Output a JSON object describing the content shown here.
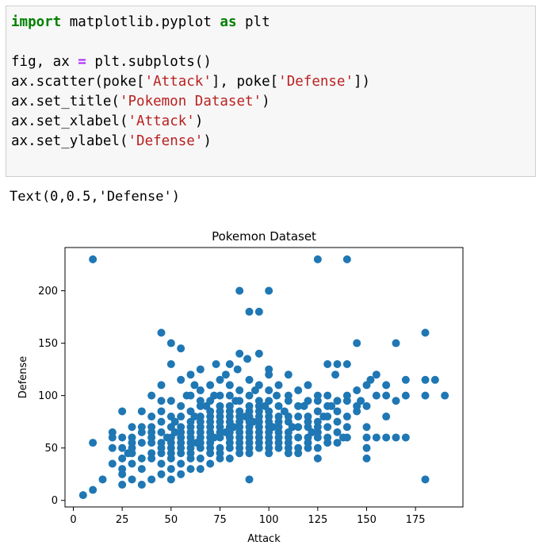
{
  "cell": {
    "lines": [
      [
        {
          "t": "import",
          "c": "kw"
        },
        {
          "t": " matplotlib.pyplot "
        },
        {
          "t": "as",
          "c": "kw"
        },
        {
          "t": " plt"
        }
      ],
      [],
      [
        {
          "t": "fig, ax "
        },
        {
          "t": "=",
          "c": "op"
        },
        {
          "t": " plt.subplots()"
        }
      ],
      [
        {
          "t": "ax.scatter(poke["
        },
        {
          "t": "'Attack'",
          "c": "str"
        },
        {
          "t": "], poke["
        },
        {
          "t": "'Defense'",
          "c": "str"
        },
        {
          "t": "])"
        }
      ],
      [
        {
          "t": "ax.set_title("
        },
        {
          "t": "'Pokemon Dataset'",
          "c": "str"
        },
        {
          "t": ")"
        }
      ],
      [
        {
          "t": "ax.set_xlabel("
        },
        {
          "t": "'Attack'",
          "c": "str"
        },
        {
          "t": ")"
        }
      ],
      [
        {
          "t": "ax.set_ylabel("
        },
        {
          "t": "'Defense'",
          "c": "str"
        },
        {
          "t": ")"
        }
      ]
    ]
  },
  "output": {
    "text": "Text(0,0.5,'Defense')"
  },
  "colors": {
    "marker": "#1f77b4",
    "cell_bg": "#f7f7f7"
  },
  "chart_data": {
    "type": "scatter",
    "title": "Pokemon Dataset",
    "xlabel": "Attack",
    "ylabel": "Defense",
    "xlim": [
      -4.25,
      199.25
    ],
    "ylim": [
      -6.25,
      241.25
    ],
    "xticks": [
      0,
      25,
      50,
      75,
      100,
      125,
      150,
      175
    ],
    "yticks": [
      0,
      50,
      100,
      150,
      200
    ],
    "grid": false,
    "series": [
      {
        "x": [
          5,
          10,
          10,
          15,
          20,
          20,
          20,
          20,
          25,
          25,
          25,
          25,
          25,
          25,
          25,
          28,
          30,
          30,
          30,
          30,
          30,
          30,
          30,
          35,
          35,
          35,
          35,
          35,
          35,
          35,
          40,
          40,
          40,
          40,
          40,
          40,
          40,
          40,
          40,
          45,
          45,
          45,
          45,
          45,
          45,
          45,
          45,
          45,
          45,
          45,
          48,
          50,
          50,
          50,
          50,
          50,
          50,
          50,
          50,
          50,
          50,
          50,
          50,
          52,
          52,
          55,
          55,
          55,
          55,
          55,
          55,
          55,
          55,
          55,
          55,
          55,
          55,
          58,
          60,
          60,
          60,
          60,
          60,
          60,
          60,
          60,
          60,
          60,
          60,
          60,
          62,
          62,
          63,
          65,
          65,
          65,
          65,
          65,
          65,
          65,
          65,
          65,
          65,
          65,
          65,
          65,
          68,
          70,
          70,
          70,
          70,
          70,
          70,
          70,
          70,
          70,
          70,
          70,
          70,
          72,
          72,
          73,
          75,
          75,
          75,
          75,
          75,
          75,
          75,
          75,
          75,
          75,
          75,
          75,
          78,
          78,
          80,
          80,
          80,
          80,
          80,
          80,
          80,
          80,
          80,
          80,
          80,
          80,
          80,
          82,
          83,
          84,
          85,
          85,
          85,
          85,
          85,
          85,
          85,
          85,
          85,
          85,
          85,
          85,
          88,
          89,
          90,
          90,
          90,
          90,
          90,
          90,
          90,
          90,
          90,
          90,
          90,
          90,
          90,
          92,
          93,
          95,
          95,
          95,
          95,
          95,
          95,
          95,
          95,
          95,
          95,
          95,
          95,
          98,
          100,
          100,
          100,
          100,
          100,
          100,
          100,
          100,
          100,
          100,
          100,
          100,
          100,
          102,
          104,
          105,
          105,
          105,
          105,
          105,
          105,
          105,
          105,
          105,
          108,
          110,
          110,
          110,
          110,
          110,
          110,
          110,
          110,
          110,
          110,
          112,
          115,
          115,
          115,
          115,
          115,
          115,
          115,
          118,
          120,
          120,
          120,
          120,
          120,
          120,
          120,
          120,
          122,
          125,
          125,
          125,
          125,
          125,
          125,
          125,
          125,
          125,
          128,
          130,
          130,
          130,
          130,
          130,
          130,
          130,
          132,
          134,
          135,
          135,
          135,
          135,
          135,
          135,
          138,
          140,
          140,
          140,
          140,
          140,
          140,
          145,
          145,
          145,
          145,
          147,
          150,
          150,
          150,
          150,
          150,
          150,
          152,
          155,
          155,
          155,
          160,
          160,
          160,
          160,
          165,
          165,
          165,
          170,
          170,
          170,
          180,
          180,
          180,
          180,
          185,
          190,
          10,
          85,
          100,
          125,
          140,
          90,
          95
        ],
        "y": [
          5,
          55,
          10,
          20,
          35,
          50,
          60,
          65,
          15,
          30,
          40,
          50,
          60,
          85,
          25,
          45,
          20,
          35,
          45,
          50,
          55,
          60,
          70,
          15,
          30,
          40,
          55,
          65,
          70,
          85,
          20,
          40,
          45,
          55,
          60,
          65,
          70,
          80,
          100,
          25,
          35,
          45,
          50,
          55,
          65,
          75,
          85,
          95,
          110,
          160,
          60,
          20,
          30,
          40,
          45,
          50,
          55,
          60,
          70,
          80,
          95,
          130,
          150,
          65,
          75,
          25,
          35,
          45,
          50,
          55,
          60,
          65,
          70,
          80,
          90,
          115,
          145,
          100,
          30,
          40,
          45,
          50,
          55,
          60,
          65,
          70,
          75,
          85,
          100,
          120,
          80,
          110,
          55,
          30,
          40,
          50,
          55,
          60,
          65,
          70,
          75,
          80,
          90,
          95,
          105,
          125,
          90,
          35,
          45,
          50,
          55,
          60,
          65,
          70,
          75,
          80,
          85,
          95,
          110,
          60,
          100,
          130,
          40,
          45,
          50,
          60,
          65,
          70,
          75,
          80,
          85,
          90,
          100,
          115,
          65,
          120,
          40,
          50,
          55,
          60,
          65,
          70,
          75,
          80,
          85,
          90,
          100,
          110,
          130,
          70,
          95,
          125,
          45,
          50,
          55,
          60,
          65,
          70,
          75,
          80,
          85,
          95,
          105,
          140,
          80,
          135,
          20,
          45,
          50,
          55,
          60,
          65,
          70,
          75,
          80,
          85,
          90,
          100,
          115,
          75,
          105,
          50,
          55,
          60,
          65,
          70,
          75,
          80,
          85,
          90,
          95,
          110,
          140,
          90,
          45,
          50,
          55,
          60,
          65,
          70,
          75,
          80,
          85,
          95,
          105,
          120,
          125,
          70,
          100,
          50,
          55,
          60,
          65,
          70,
          75,
          80,
          90,
          110,
          85,
          45,
          50,
          55,
          60,
          65,
          75,
          80,
          95,
          100,
          120,
          70,
          45,
          50,
          60,
          70,
          80,
          90,
          105,
          90,
          50,
          55,
          60,
          70,
          75,
          80,
          95,
          110,
          65,
          40,
          50,
          60,
          65,
          70,
          75,
          85,
          95,
          100,
          80,
          55,
          60,
          70,
          80,
          90,
          100,
          130,
          90,
          120,
          55,
          65,
          75,
          85,
          95,
          130,
          60,
          60,
          70,
          80,
          95,
          100,
          130,
          85,
          90,
          105,
          150,
          95,
          40,
          50,
          60,
          70,
          90,
          110,
          115,
          60,
          100,
          120,
          60,
          80,
          100,
          110,
          60,
          95,
          150,
          60,
          100,
          115,
          20,
          100,
          160,
          115,
          115,
          100,
          230,
          200,
          200,
          230,
          230,
          180,
          180
        ]
      }
    ]
  }
}
